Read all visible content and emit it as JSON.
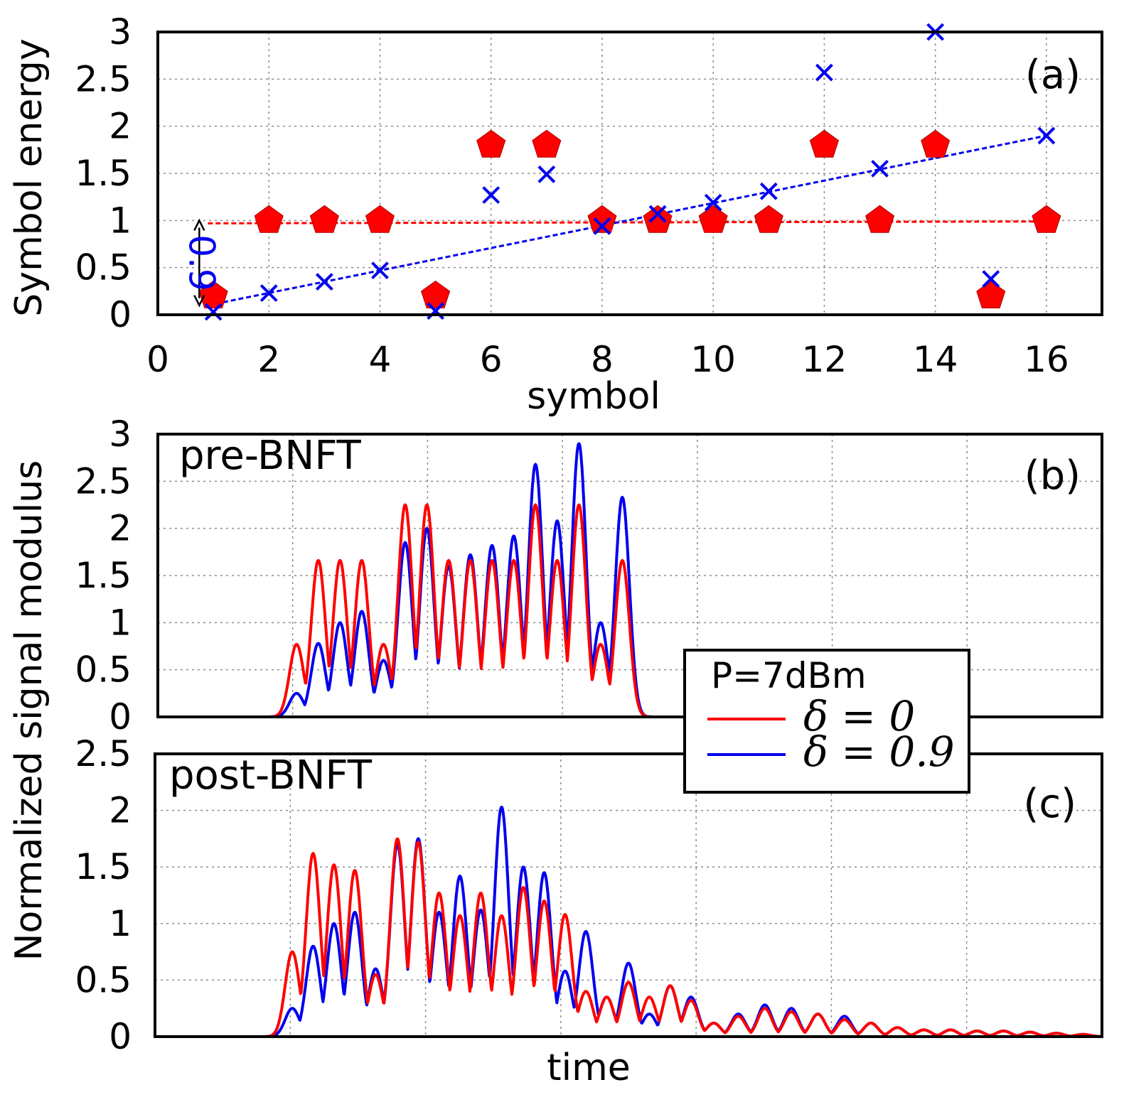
{
  "colors": {
    "red": "#ff0000",
    "blue": "#0000ee",
    "black": "#000000"
  },
  "ylabel_shared": "Normalized signal modulus",
  "chart_data": [
    {
      "id": "a",
      "type": "scatter",
      "panel_label": "(a)",
      "xlabel": "symbol",
      "ylabel": "Symbol energy",
      "xlim": [
        0,
        17
      ],
      "ylim": [
        0,
        3
      ],
      "xticks": [
        "0",
        "2",
        "4",
        "6",
        "8",
        "10",
        "12",
        "14",
        "16"
      ],
      "yticks": [
        "0",
        "0.5",
        "1",
        "1.5",
        "2",
        "2.5",
        "3"
      ],
      "grid": true,
      "annotation": {
        "text": "0.9",
        "from_y": 0.1,
        "to_y": 1.0,
        "x": 0.9
      },
      "series": [
        {
          "name": "delta=0 (pentagon)",
          "marker": "pentagon",
          "color": "red",
          "x": [
            1,
            2,
            3,
            4,
            5,
            6,
            7,
            8,
            9,
            10,
            11,
            12,
            13,
            14,
            15,
            16
          ],
          "y": [
            0.2,
            1.0,
            1.0,
            1.0,
            0.2,
            1.8,
            1.8,
            1.0,
            1.0,
            1.0,
            1.0,
            1.8,
            1.0,
            1.8,
            0.2,
            1.0
          ]
        },
        {
          "name": "delta=0.9 (cross)",
          "marker": "cross",
          "color": "blue",
          "x": [
            1,
            2,
            3,
            4,
            5,
            6,
            7,
            8,
            9,
            10,
            11,
            12,
            13,
            14,
            15,
            16
          ],
          "y": [
            0.03,
            0.23,
            0.35,
            0.47,
            0.04,
            1.27,
            1.49,
            0.94,
            1.07,
            1.19,
            1.31,
            2.57,
            1.55,
            3.0,
            0.38,
            1.9
          ]
        }
      ],
      "fit_lines": [
        {
          "color": "red",
          "x": [
            0.9,
            16
          ],
          "y": [
            0.97,
            0.99
          ]
        },
        {
          "color": "blue",
          "x": [
            0.9,
            16
          ],
          "y": [
            0.1,
            1.9
          ]
        }
      ]
    },
    {
      "id": "b",
      "type": "line",
      "panel_label": "(b)",
      "title": "pre-BNFT",
      "ylim": [
        0,
        3
      ],
      "yticks": [
        "0",
        "0.5",
        "1",
        "1.5",
        "2",
        "2.5",
        "3"
      ],
      "xlim": [
        0,
        1
      ],
      "grid": true,
      "peak_width": 0.0075,
      "series": [
        {
          "name": "δ = 0",
          "color": "red",
          "peaks_x": [
            0.147,
            0.17,
            0.193,
            0.216,
            0.239,
            0.262,
            0.285,
            0.308,
            0.331,
            0.354,
            0.377,
            0.4,
            0.423,
            0.446,
            0.469,
            0.492
          ],
          "peaks_y": [
            0.77,
            1.66,
            1.66,
            1.66,
            0.77,
            2.25,
            2.25,
            1.66,
            1.66,
            1.66,
            1.66,
            2.25,
            1.66,
            2.25,
            0.77,
            1.66
          ]
        },
        {
          "name": "δ = 0.9",
          "color": "blue",
          "peaks_x": [
            0.147,
            0.17,
            0.193,
            0.216,
            0.239,
            0.262,
            0.285,
            0.308,
            0.331,
            0.354,
            0.377,
            0.4,
            0.423,
            0.446,
            0.469,
            0.492
          ],
          "peaks_y": [
            0.25,
            0.78,
            1.0,
            1.12,
            0.6,
            1.85,
            2.0,
            1.6,
            1.72,
            1.82,
            1.92,
            2.68,
            2.08,
            2.9,
            1.0,
            2.33
          ]
        }
      ]
    },
    {
      "id": "c",
      "type": "line",
      "panel_label": "(c)",
      "title": "post-BNFT",
      "xlabel": "time",
      "ylim": [
        0,
        2.5
      ],
      "yticks": [
        "0",
        "0.5",
        "1",
        "1.5",
        "2",
        "2.5"
      ],
      "xlim": [
        0,
        1
      ],
      "grid": true,
      "peak_width": 0.0075,
      "series": [
        {
          "name": "δ = 0",
          "color": "red",
          "peaks_x": [
            0.145,
            0.167,
            0.189,
            0.211,
            0.233,
            0.256,
            0.278,
            0.3,
            0.322,
            0.344,
            0.366,
            0.389,
            0.411,
            0.433,
            0.455,
            0.477,
            0.5,
            0.522,
            0.544,
            0.566,
            0.59,
            0.616,
            0.644,
            0.672,
            0.7,
            0.728,
            0.756,
            0.784,
            0.812,
            0.84,
            0.868,
            0.896,
            0.924,
            0.952,
            0.98
          ],
          "peaks_y": [
            0.75,
            1.62,
            1.52,
            1.47,
            0.55,
            1.75,
            1.72,
            1.27,
            1.07,
            1.27,
            1.07,
            1.32,
            1.2,
            1.08,
            0.4,
            0.35,
            0.48,
            0.35,
            0.45,
            0.32,
            0.12,
            0.18,
            0.25,
            0.22,
            0.2,
            0.15,
            0.12,
            0.08,
            0.06,
            0.06,
            0.05,
            0.05,
            0.04,
            0.03,
            0.02
          ]
        },
        {
          "name": "δ = 0.9",
          "color": "blue",
          "peaks_x": [
            0.145,
            0.167,
            0.189,
            0.211,
            0.233,
            0.256,
            0.278,
            0.3,
            0.322,
            0.344,
            0.366,
            0.389,
            0.411,
            0.433,
            0.455,
            0.477,
            0.5,
            0.522,
            0.544,
            0.566,
            0.59,
            0.616,
            0.644,
            0.672,
            0.7,
            0.728,
            0.756,
            0.784,
            0.812,
            0.84,
            0.868,
            0.896,
            0.924,
            0.952,
            0.98
          ],
          "peaks_y": [
            0.25,
            0.8,
            1.0,
            1.1,
            0.6,
            1.7,
            1.75,
            1.1,
            1.42,
            1.12,
            2.03,
            1.5,
            1.45,
            0.58,
            0.93,
            0.35,
            0.65,
            0.2,
            0.45,
            0.35,
            0.12,
            0.2,
            0.28,
            0.25,
            0.2,
            0.18,
            0.12,
            0.08,
            0.06,
            0.06,
            0.05,
            0.05,
            0.04,
            0.03,
            0.02
          ]
        }
      ]
    }
  ],
  "legend": {
    "title": "P=7dBm",
    "entries": [
      {
        "color": "red",
        "label": "δ = 0"
      },
      {
        "color": "blue",
        "label": "δ = 0.9"
      }
    ]
  }
}
